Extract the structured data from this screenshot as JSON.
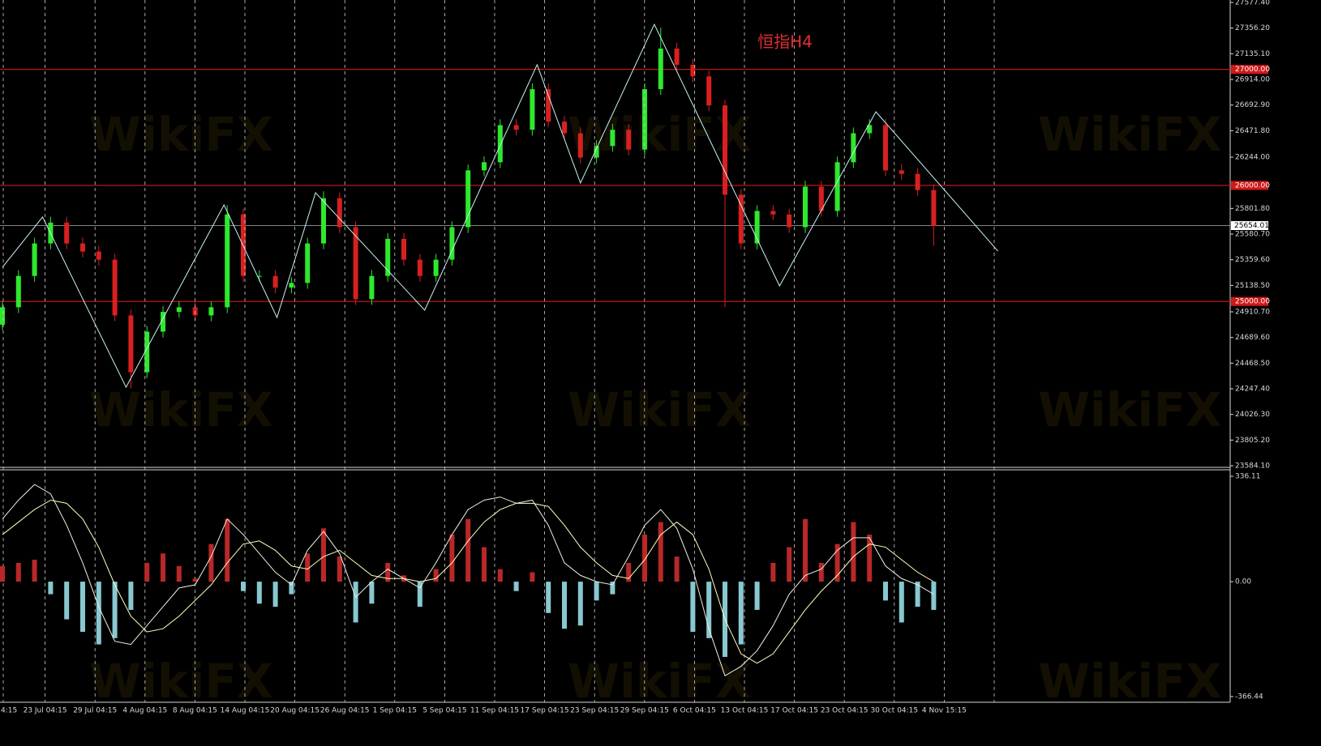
{
  "watermark": "WikiFX",
  "chart_data": [
    {
      "type": "candlestick",
      "title": "恒指H4",
      "open": [
        24800,
        24950,
        25220,
        25500,
        25680,
        25500,
        25430,
        25360,
        24880,
        24390,
        24740,
        24910,
        24950,
        24880,
        24950,
        25750,
        25220,
        25220,
        25120,
        25160,
        25500,
        25890,
        25640,
        25020,
        25220,
        25540,
        25360,
        25220,
        25360,
        25640,
        26130,
        26200,
        26520,
        26480,
        26830,
        26550,
        26450,
        26240,
        26340,
        26480,
        26310,
        26830,
        27180,
        27040,
        26940,
        26690,
        25920,
        25500,
        25780,
        25750,
        25640,
        25990,
        25780,
        26200,
        26450,
        26520,
        26130,
        26100,
        25960
      ],
      "high": [
        25000,
        25270,
        25550,
        25730,
        25730,
        25550,
        25480,
        25410,
        24930,
        24790,
        24960,
        25000,
        25000,
        25000,
        25830,
        25800,
        25270,
        25270,
        25210,
        25550,
        25950,
        25940,
        25690,
        25270,
        25590,
        25590,
        25410,
        25410,
        25690,
        26180,
        26250,
        26570,
        26570,
        26880,
        26880,
        26600,
        26500,
        26390,
        26530,
        26530,
        26880,
        27360,
        27230,
        27090,
        26990,
        26740,
        25970,
        25830,
        25830,
        25800,
        26040,
        26040,
        26250,
        26500,
        26570,
        26570,
        26180,
        26150,
        26010
      ],
      "low": [
        24750,
        24900,
        25170,
        25450,
        25450,
        25380,
        25310,
        24830,
        24250,
        24340,
        24690,
        24860,
        24830,
        24830,
        24900,
        25170,
        25170,
        25070,
        25070,
        25110,
        25450,
        25590,
        24970,
        24970,
        25170,
        25310,
        25170,
        25170,
        25310,
        25590,
        26080,
        26150,
        26430,
        26430,
        26500,
        26400,
        26190,
        26190,
        26290,
        26260,
        26260,
        26780,
        26990,
        26890,
        26640,
        24950,
        25450,
        25450,
        25700,
        25590,
        25590,
        25730,
        25730,
        26150,
        26400,
        26080,
        26050,
        25910,
        25480
      ],
      "close": [
        24950,
        25220,
        25500,
        25680,
        25500,
        25430,
        25360,
        24880,
        24390,
        24740,
        24910,
        24950,
        24880,
        24950,
        25750,
        25220,
        25220,
        25120,
        25160,
        25500,
        25890,
        25640,
        25020,
        25220,
        25540,
        25360,
        25220,
        25360,
        25640,
        26130,
        26200,
        26520,
        26480,
        26830,
        26550,
        26450,
        26240,
        26340,
        26480,
        26310,
        26830,
        27180,
        27040,
        26940,
        26690,
        25920,
        25500,
        25780,
        25750,
        25640,
        25990,
        25780,
        26200,
        26450,
        26520,
        26130,
        26100,
        25960,
        25650
      ],
      "colors": {
        "up": "#2ee82e",
        "down": "#d82020",
        "level": "#d01818",
        "axis": "#d8d8d8"
      },
      "ylim": [
        23584.1,
        27577.4
      ],
      "yticks": [
        {
          "value": 27577.4,
          "label": "27577.40"
        },
        {
          "value": 27356.2,
          "label": "27356.20"
        },
        {
          "value": 27135.1,
          "label": "27135.10"
        },
        {
          "value": 26914,
          "label": "26914.00"
        },
        {
          "value": 26692.9,
          "label": "26692.90"
        },
        {
          "value": 26471.8,
          "label": "26471.80"
        },
        {
          "value": 26244,
          "label": "26244.00"
        },
        {
          "value": 25801.8,
          "label": "25801.80"
        },
        {
          "value": 25580.7,
          "label": "25580.70"
        },
        {
          "value": 25359.6,
          "label": "25359.60"
        },
        {
          "value": 25138.5,
          "label": "25138.50"
        },
        {
          "value": 24910.7,
          "label": "24910.70"
        },
        {
          "value": 24689.6,
          "label": "24689.60"
        },
        {
          "value": 24468.5,
          "label": "24468.50"
        },
        {
          "value": 24247.4,
          "label": "24247.40"
        },
        {
          "value": 24026.3,
          "label": "24026.30"
        },
        {
          "value": 23805.2,
          "label": "23805.20"
        },
        {
          "value": 23584.1,
          "label": "23584.10"
        }
      ],
      "levels": [
        {
          "value": 27000,
          "label": "27000.00"
        },
        {
          "value": 26000,
          "label": "26000.00"
        },
        {
          "value": 25000,
          "label": "25000.00"
        }
      ],
      "current": {
        "value": 25654.01,
        "label": "25654.01"
      },
      "zigzag": {
        "color": "#c8f4f4",
        "x": [
          0,
          2.5,
          7.7,
          13.8,
          17.1,
          19.5,
          26.3,
          33.3,
          36.0,
          40.6,
          48.4,
          54.4,
          62.0
        ],
        "values": [
          25295,
          25728,
          24261,
          25832,
          24862,
          25937,
          24925,
          27040,
          26021,
          27389,
          25134,
          26635,
          25434
        ]
      }
    },
    {
      "type": "macd",
      "histogram": [
        50,
        60,
        70,
        -40,
        -120,
        -160,
        -200,
        -180,
        -90,
        60,
        90,
        50,
        10,
        120,
        200,
        -30,
        -70,
        -80,
        -40,
        90,
        170,
        80,
        -130,
        -70,
        60,
        20,
        -80,
        40,
        150,
        200,
        110,
        40,
        -30,
        30,
        -100,
        -150,
        -140,
        -60,
        -40,
        60,
        150,
        190,
        80,
        -160,
        -180,
        -240,
        -200,
        -90,
        60,
        110,
        200,
        60,
        120,
        190,
        150,
        -60,
        -130,
        -80,
        -90
      ],
      "macd": [
        200,
        260,
        310,
        280,
        180,
        60,
        -80,
        -190,
        -200,
        -140,
        -80,
        -20,
        -10,
        80,
        200,
        150,
        90,
        30,
        -10,
        100,
        160,
        90,
        -50,
        0,
        40,
        10,
        -20,
        60,
        150,
        230,
        260,
        270,
        250,
        260,
        180,
        60,
        20,
        0,
        -10,
        80,
        180,
        230,
        170,
        40,
        -150,
        -300,
        -270,
        -220,
        -140,
        -40,
        20,
        40,
        100,
        140,
        140,
        50,
        10,
        -10,
        -40
      ],
      "signal": [
        150,
        190,
        230,
        260,
        250,
        200,
        110,
        -10,
        -110,
        -160,
        -150,
        -110,
        -60,
        -10,
        60,
        120,
        130,
        100,
        50,
        40,
        80,
        100,
        60,
        20,
        10,
        10,
        0,
        10,
        60,
        130,
        190,
        230,
        250,
        250,
        240,
        180,
        110,
        60,
        20,
        10,
        70,
        150,
        190,
        150,
        40,
        -120,
        -230,
        -260,
        -230,
        -160,
        -90,
        -30,
        20,
        80,
        120,
        110,
        70,
        30,
        0
      ],
      "colors": {
        "positive": "#b82828",
        "negative": "#88c8d0",
        "macd": "#f0f0e0",
        "signal": "#ffffc0"
      },
      "ylim": [
        -366.44,
        336.11
      ],
      "yticks": [
        -366.44,
        {
          "value": 0,
          "label": "0.00"
        },
        336.11
      ],
      "x_labels": [
        "4:15",
        "23 Jul 04:15",
        "29 Jul 04:15",
        "4 Aug 04:15",
        "8 Aug 04:15",
        "14 Aug 04:15",
        "20 Aug 04:15",
        "26 Aug 04:15",
        "1 Sep 04:15",
        "5 Sep 04:15",
        "11 Sep 04:15",
        "17 Sep 04:15",
        "23 Sep 04:15",
        "29 Sep 04:15",
        "6 Oct 04:15",
        "13 Oct 04:15",
        "17 Oct 04:15",
        "23 Oct 04:15",
        "30 Oct 04:15",
        "4 Nov 15:15"
      ]
    }
  ]
}
